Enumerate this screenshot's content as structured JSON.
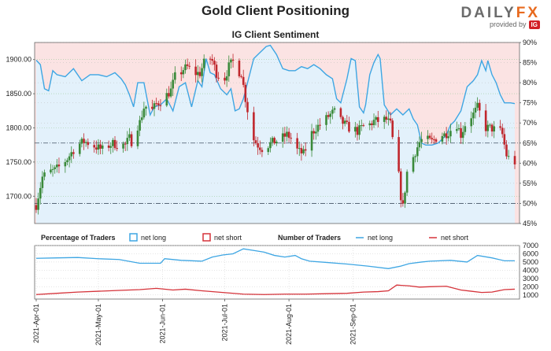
{
  "header": {
    "title": "Gold Client Positioning",
    "subtitle": "IG Client Sentiment",
    "brand": "DAILY",
    "brand_accent": "FX",
    "brand_sub": "provided by",
    "brand_ig": "IG"
  },
  "colors": {
    "long": "#3ea6e3",
    "short": "#d5333a",
    "bull_candle": "#3a8a3a",
    "bear_candle": "#c0272d",
    "pink_fill": "#fbe3e3",
    "blue_fill": "#e3f1fb",
    "grid": "#9ccc9c"
  },
  "chart_data": [
    {
      "type": "candlestick+line",
      "name": "price-sentiment",
      "title": "IG Client Sentiment",
      "y_left_ticks": [
        "1700.00",
        "1750.00",
        "1800.00",
        "1850.00",
        "1900.00"
      ],
      "y_left_values": [
        1700,
        1750,
        1800,
        1850,
        1900
      ],
      "ylim_left": [
        1660,
        1925
      ],
      "y_right_ticks": [
        "45%",
        "50%",
        "55%",
        "60%",
        "65%",
        "70%",
        "75%",
        "80%",
        "85%",
        "90%"
      ],
      "ylim_right": [
        45,
        90
      ],
      "reference_lines_right": [
        50,
        65
      ],
      "grid": true,
      "x_days_range": [
        0,
        179
      ],
      "net_long_pct": [
        [
          0,
          85.6
        ],
        [
          2,
          84.5
        ],
        [
          4,
          78.5
        ],
        [
          6,
          78
        ],
        [
          8,
          83
        ],
        [
          10,
          82
        ],
        [
          14,
          81.5
        ],
        [
          18,
          83.5
        ],
        [
          22,
          80.5
        ],
        [
          26,
          82
        ],
        [
          30,
          82
        ],
        [
          34,
          81.5
        ],
        [
          38,
          82.5
        ],
        [
          41,
          81
        ],
        [
          43,
          79.5
        ],
        [
          45,
          77
        ],
        [
          47,
          74
        ],
        [
          49,
          80
        ],
        [
          52,
          80
        ],
        [
          55,
          72
        ],
        [
          57,
          74
        ],
        [
          60,
          74.5
        ],
        [
          63,
          76
        ],
        [
          66,
          73
        ],
        [
          69,
          79
        ],
        [
          72,
          80
        ],
        [
          75,
          74
        ],
        [
          78,
          80.5
        ],
        [
          80,
          79
        ],
        [
          82,
          86
        ],
        [
          84,
          82.5
        ],
        [
          86,
          82
        ],
        [
          89,
          78.5
        ],
        [
          92,
          77
        ],
        [
          94,
          78.5
        ],
        [
          96,
          73
        ],
        [
          98,
          73.5
        ],
        [
          100,
          76
        ],
        [
          102,
          80
        ],
        [
          105,
          86
        ],
        [
          108,
          87.5
        ],
        [
          111,
          89
        ],
        [
          113,
          89.3
        ],
        [
          116,
          87
        ],
        [
          119,
          83.5
        ],
        [
          122,
          83
        ],
        [
          125,
          83
        ],
        [
          128,
          84
        ],
        [
          131,
          83.5
        ],
        [
          134,
          84.5
        ],
        [
          137,
          83.5
        ],
        [
          140,
          82
        ],
        [
          143,
          81
        ],
        [
          145,
          76
        ],
        [
          147,
          75
        ],
        [
          150,
          81
        ],
        [
          152,
          86
        ],
        [
          154,
          85.5
        ],
        [
          156,
          74
        ],
        [
          158,
          72.5
        ],
        [
          159,
          74.5
        ],
        [
          161,
          82
        ],
        [
          163,
          85
        ],
        [
          165,
          87
        ],
        [
          166,
          86
        ],
        [
          168,
          74.5
        ],
        [
          171,
          72
        ],
        [
          174,
          73.5
        ],
        [
          177,
          72
        ],
        [
          180,
          73.5
        ],
        [
          182,
          71
        ],
        [
          184,
          69.5
        ],
        [
          186,
          65
        ],
        [
          188,
          64.5
        ],
        [
          191,
          64.5
        ],
        [
          194,
          65
        ],
        [
          196,
          66
        ],
        [
          198,
          67
        ],
        [
          200,
          69.5
        ],
        [
          202,
          70.5
        ],
        [
          205,
          73
        ],
        [
          208,
          79
        ],
        [
          211,
          80.5
        ],
        [
          213,
          82
        ],
        [
          215,
          85.5
        ],
        [
          217,
          83
        ],
        [
          218,
          85.5
        ],
        [
          220,
          82
        ],
        [
          222,
          80
        ],
        [
          224,
          77
        ],
        [
          226,
          75
        ],
        [
          229,
          75
        ],
        [
          231,
          74.8
        ]
      ],
      "note_ohlc": "daily candles generated in script from the visible trajectory; values are approximate readings",
      "close_path": [
        [
          0,
          1687
        ],
        [
          3,
          1728
        ],
        [
          6,
          1735
        ],
        [
          9,
          1738
        ],
        [
          12,
          1745
        ],
        [
          15,
          1755
        ],
        [
          18,
          1768
        ],
        [
          20,
          1775
        ],
        [
          23,
          1780
        ],
        [
          26,
          1777
        ],
        [
          29,
          1772
        ],
        [
          32,
          1768
        ],
        [
          34,
          1773
        ],
        [
          37,
          1777
        ],
        [
          40,
          1775
        ],
        [
          43,
          1775
        ],
        [
          45,
          1785
        ],
        [
          46,
          1780
        ],
        [
          48,
          1798
        ],
        [
          50,
          1808
        ],
        [
          52,
          1830
        ],
        [
          54,
          1832
        ],
        [
          56,
          1826
        ],
        [
          58,
          1835
        ],
        [
          61,
          1841
        ],
        [
          63,
          1848
        ],
        [
          65,
          1855
        ],
        [
          67,
          1875
        ],
        [
          69,
          1878
        ],
        [
          71,
          1886
        ],
        [
          73,
          1889
        ],
        [
          75,
          1884
        ],
        [
          77,
          1880
        ],
        [
          79,
          1880
        ],
        [
          81,
          1895
        ],
        [
          83,
          1905
        ],
        [
          85,
          1898
        ],
        [
          87,
          1880
        ],
        [
          89,
          1875
        ],
        [
          91,
          1873
        ],
        [
          93,
          1890
        ],
        [
          95,
          1897
        ],
        [
          97,
          1884
        ],
        [
          99,
          1880
        ],
        [
          101,
          1843
        ],
        [
          103,
          1810
        ],
        [
          105,
          1783
        ],
        [
          107,
          1775
        ],
        [
          109,
          1770
        ],
        [
          111,
          1773
        ],
        [
          113,
          1777
        ],
        [
          115,
          1780
        ],
        [
          117,
          1782
        ],
        [
          119,
          1786
        ],
        [
          121,
          1790
        ],
        [
          123,
          1785
        ],
        [
          125,
          1770
        ],
        [
          127,
          1765
        ],
        [
          129,
          1762
        ],
        [
          131,
          1776
        ],
        [
          133,
          1792
        ],
        [
          135,
          1800
        ],
        [
          137,
          1805
        ],
        [
          139,
          1810
        ],
        [
          141,
          1817
        ],
        [
          143,
          1822
        ],
        [
          145,
          1825
        ],
        [
          147,
          1810
        ],
        [
          149,
          1805
        ],
        [
          151,
          1800
        ],
        [
          153,
          1799
        ],
        [
          155,
          1795
        ],
        [
          157,
          1800
        ],
        [
          159,
          1805
        ],
        [
          161,
          1805
        ],
        [
          163,
          1810
        ],
        [
          165,
          1810
        ],
        [
          167,
          1812
        ],
        [
          169,
          1812
        ],
        [
          171,
          1805
        ],
        [
          173,
          1762
        ],
        [
          175,
          1730
        ],
        [
          176,
          1700
        ],
        [
          177,
          1684
        ],
        [
          179,
          1735
        ],
        [
          181,
          1750
        ],
        [
          183,
          1765
        ],
        [
          185,
          1779
        ],
        [
          187,
          1785
        ],
        [
          189,
          1782
        ],
        [
          191,
          1780
        ],
        [
          193,
          1785
        ],
        [
          195,
          1790
        ],
        [
          197,
          1790
        ],
        [
          199,
          1794
        ],
        [
          201,
          1800
        ],
        [
          203,
          1805
        ],
        [
          205,
          1790
        ],
        [
          207,
          1805
        ],
        [
          209,
          1815
        ],
        [
          211,
          1820
        ],
        [
          213,
          1830
        ],
        [
          215,
          1815
        ],
        [
          217,
          1800
        ],
        [
          219,
          1800
        ],
        [
          221,
          1798
        ],
        [
          223,
          1800
        ],
        [
          225,
          1790
        ],
        [
          227,
          1760
        ],
        [
          229,
          1752
        ],
        [
          231,
          1750
        ]
      ]
    },
    {
      "type": "line",
      "name": "trader-counts",
      "ylim": [
        500,
        7000
      ],
      "y_ticks": [
        "1000",
        "2000",
        "3000",
        "4000",
        "5000",
        "6000",
        "7000"
      ],
      "y_values": [
        1000,
        2000,
        3000,
        4000,
        5000,
        6000,
        7000
      ],
      "x_ticks": [
        "2021-Apr-01",
        "2021-May-01",
        "2021-Jun-01",
        "2021-Jul-01",
        "2021-Aug-01",
        "2021-Sep-01"
      ],
      "x_tick_days": [
        0,
        30,
        61,
        91,
        122,
        153
      ],
      "series": [
        {
          "name": "net long",
          "values": [
            [
              0,
              5450
            ],
            [
              10,
              5500
            ],
            [
              20,
              5550
            ],
            [
              30,
              5400
            ],
            [
              40,
              5300
            ],
            [
              50,
              4850
            ],
            [
              60,
              4850
            ],
            [
              62,
              5400
            ],
            [
              70,
              5200
            ],
            [
              80,
              5100
            ],
            [
              85,
              5600
            ],
            [
              90,
              5850
            ],
            [
              95,
              6000
            ],
            [
              100,
              6600
            ],
            [
              105,
              6400
            ],
            [
              110,
              6200
            ],
            [
              115,
              5800
            ],
            [
              120,
              5600
            ],
            [
              125,
              5800
            ],
            [
              128,
              5400
            ],
            [
              132,
              5100
            ],
            [
              140,
              4950
            ],
            [
              150,
              4750
            ],
            [
              160,
              4500
            ],
            [
              170,
              4200
            ],
            [
              176,
              4500
            ],
            [
              180,
              4800
            ],
            [
              186,
              5000
            ],
            [
              190,
              5100
            ],
            [
              200,
              5200
            ],
            [
              208,
              5000
            ],
            [
              213,
              5800
            ],
            [
              220,
              5500
            ],
            [
              226,
              5150
            ],
            [
              231,
              5150
            ]
          ]
        },
        {
          "name": "net short",
          "values": [
            [
              0,
              1050
            ],
            [
              10,
              1200
            ],
            [
              20,
              1350
            ],
            [
              30,
              1450
            ],
            [
              40,
              1550
            ],
            [
              50,
              1650
            ],
            [
              58,
              1800
            ],
            [
              66,
              1600
            ],
            [
              72,
              1700
            ],
            [
              80,
              1500
            ],
            [
              90,
              1300
            ],
            [
              100,
              1100
            ],
            [
              110,
              1050
            ],
            [
              120,
              1100
            ],
            [
              130,
              1100
            ],
            [
              140,
              1150
            ],
            [
              150,
              1200
            ],
            [
              158,
              1350
            ],
            [
              165,
              1400
            ],
            [
              170,
              1500
            ],
            [
              174,
              2200
            ],
            [
              180,
              2100
            ],
            [
              185,
              1950
            ],
            [
              190,
              2000
            ],
            [
              198,
              2050
            ],
            [
              205,
              1600
            ],
            [
              210,
              1450
            ],
            [
              215,
              1300
            ],
            [
              220,
              1350
            ],
            [
              226,
              1650
            ],
            [
              231,
              1700
            ]
          ]
        }
      ]
    }
  ],
  "legend": {
    "pct_title": "Percentage of Traders",
    "num_title": "Number of Traders",
    "long_label": "net long",
    "short_label": "net short"
  }
}
